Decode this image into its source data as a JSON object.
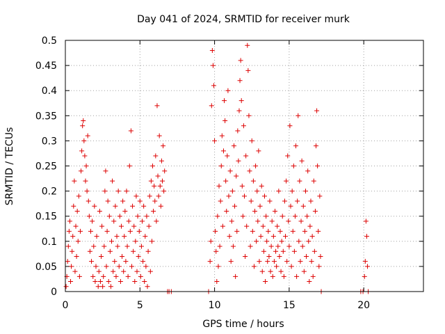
{
  "chart_data": {
    "type": "scatter",
    "title": "Day 041 of 2024, SRMTID for receiver murk",
    "xlabel": "GPS time / hours",
    "ylabel": "SRMTID / TECUs",
    "xlim": [
      0,
      24
    ],
    "ylim": [
      0,
      0.5
    ],
    "grid": true,
    "x_ticks": [
      0,
      5,
      10,
      15,
      20
    ],
    "y_ticks": [
      0,
      0.05,
      0.1,
      0.15,
      0.2,
      0.25,
      0.3,
      0.35,
      0.4,
      0.45,
      0.5
    ],
    "x_tick_labels": [
      "0",
      "5",
      "10",
      "15",
      "20"
    ],
    "y_tick_labels": [
      "0",
      "0.05",
      "0.1",
      "0.15",
      "0.2",
      "0.25",
      "0.3",
      "0.35",
      "0.4",
      "0.45",
      "0.5"
    ],
    "series": [
      {
        "name": "SRMTID",
        "marker": "+",
        "color": "#dd0000",
        "points": [
          [
            0.05,
            0.01
          ],
          [
            0.1,
            0.03
          ],
          [
            0.15,
            0.06
          ],
          [
            0.2,
            0.09
          ],
          [
            0.25,
            0.12
          ],
          [
            0.3,
            0.14
          ],
          [
            0.35,
            0.02
          ],
          [
            0.4,
            0.05
          ],
          [
            0.45,
            0.08
          ],
          [
            0.5,
            0.11
          ],
          [
            0.55,
            0.17
          ],
          [
            0.6,
            0.22
          ],
          [
            0.65,
            0.04
          ],
          [
            0.7,
            0.13
          ],
          [
            0.75,
            0.07
          ],
          [
            0.8,
            0.16
          ],
          [
            0.85,
            0.1
          ],
          [
            0.9,
            0.19
          ],
          [
            0.95,
            0.03
          ],
          [
            1.0,
            0.12
          ],
          [
            1.05,
            0.24
          ],
          [
            1.1,
            0.28
          ],
          [
            1.15,
            0.33
          ],
          [
            1.2,
            0.34
          ],
          [
            1.25,
            0.3
          ],
          [
            1.3,
            0.27
          ],
          [
            1.35,
            0.22
          ],
          [
            1.4,
            0.25
          ],
          [
            1.45,
            0.2
          ],
          [
            1.5,
            0.31
          ],
          [
            1.55,
            0.18
          ],
          [
            1.6,
            0.15
          ],
          [
            1.65,
            0.08
          ],
          [
            1.7,
            0.12
          ],
          [
            1.75,
            0.06
          ],
          [
            1.8,
            0.14
          ],
          [
            1.85,
            0.03
          ],
          [
            1.9,
            0.09
          ],
          [
            1.95,
            0.17
          ],
          [
            2.0,
            0.02
          ],
          [
            2.05,
            0.05
          ],
          [
            2.1,
            0.11
          ],
          [
            2.2,
            0.01
          ],
          [
            2.25,
            0.04
          ],
          [
            2.3,
            0.16
          ],
          [
            2.35,
            0.02
          ],
          [
            2.4,
            0.07
          ],
          [
            2.45,
            0.13
          ],
          [
            2.5,
            0.01
          ],
          [
            2.55,
            0.03
          ],
          [
            2.6,
            0.09
          ],
          [
            2.65,
            0.2
          ],
          [
            2.7,
            0.24
          ],
          [
            2.75,
            0.05
          ],
          [
            2.8,
            0.12
          ],
          [
            2.85,
            0.18
          ],
          [
            2.9,
            0.02
          ],
          [
            2.95,
            0.15
          ],
          [
            3.0,
            0.08
          ],
          [
            3.05,
            0.01
          ],
          [
            3.1,
            0.1
          ],
          [
            3.15,
            0.22
          ],
          [
            3.2,
            0.04
          ],
          [
            3.25,
            0.14
          ],
          [
            3.3,
            0.06
          ],
          [
            3.35,
            0.17
          ],
          [
            3.4,
            0.03
          ],
          [
            3.45,
            0.11
          ],
          [
            3.5,
            0.09
          ],
          [
            3.55,
            0.2
          ],
          [
            3.6,
            0.05
          ],
          [
            3.65,
            0.15
          ],
          [
            3.7,
            0.02
          ],
          [
            3.75,
            0.13
          ],
          [
            3.8,
            0.07
          ],
          [
            3.85,
            0.18
          ],
          [
            3.9,
            0.04
          ],
          [
            3.95,
            0.11
          ],
          [
            4.0,
            0.16
          ],
          [
            4.05,
            0.06
          ],
          [
            4.1,
            0.2
          ],
          [
            4.15,
            0.09
          ],
          [
            4.2,
            0.03
          ],
          [
            4.25,
            0.14
          ],
          [
            4.3,
            0.25
          ],
          [
            4.35,
            0.12
          ],
          [
            4.4,
            0.32
          ],
          [
            4.45,
            0.05
          ],
          [
            4.5,
            0.17
          ],
          [
            4.55,
            0.08
          ],
          [
            4.6,
            0.13
          ],
          [
            4.65,
            0.02
          ],
          [
            4.7,
            0.1
          ],
          [
            4.75,
            0.19
          ],
          [
            4.8,
            0.04
          ],
          [
            4.85,
            0.15
          ],
          [
            4.9,
            0.07
          ],
          [
            4.95,
            0.12
          ],
          [
            5.0,
            0.18
          ],
          [
            5.05,
            0.03
          ],
          [
            5.1,
            0.09
          ],
          [
            5.15,
            0.14
          ],
          [
            5.2,
            0.06
          ],
          [
            5.25,
            0.17
          ],
          [
            5.3,
            0.02
          ],
          [
            5.35,
            0.11
          ],
          [
            5.4,
            0.05
          ],
          [
            5.45,
            0.15
          ],
          [
            5.5,
            0.01
          ],
          [
            5.55,
            0.08
          ],
          [
            5.6,
            0.13
          ],
          [
            5.65,
            0.19
          ],
          [
            5.7,
            0.04
          ],
          [
            5.75,
            0.22
          ],
          [
            5.8,
            0.1
          ],
          [
            5.85,
            0.25
          ],
          [
            5.9,
            0.16
          ],
          [
            5.95,
            0.21
          ],
          [
            6.0,
            0.18
          ],
          [
            6.05,
            0.27
          ],
          [
            6.1,
            0.14
          ],
          [
            6.15,
            0.37
          ],
          [
            6.2,
            0.23
          ],
          [
            6.25,
            0.19
          ],
          [
            6.3,
            0.31
          ],
          [
            6.35,
            0.21
          ],
          [
            6.4,
            0.17
          ],
          [
            6.45,
            0.26
          ],
          [
            6.5,
            0.22
          ],
          [
            6.55,
            0.29
          ],
          [
            6.6,
            0.2
          ],
          [
            6.65,
            0.24
          ],
          [
            6.85,
            0.0
          ],
          [
            6.95,
            0.0
          ],
          [
            7.1,
            0.0
          ],
          [
            9.6,
            0.0
          ],
          [
            9.7,
            0.06
          ],
          [
            9.75,
            0.1
          ],
          [
            9.8,
            0.37
          ],
          [
            9.85,
            0.48
          ],
          [
            9.9,
            0.45
          ],
          [
            9.95,
            0.41
          ],
          [
            10.0,
            0.3
          ],
          [
            10.05,
            0.12
          ],
          [
            10.1,
            0.08
          ],
          [
            10.15,
            0.02
          ],
          [
            10.2,
            0.15
          ],
          [
            10.25,
            0.05
          ],
          [
            10.3,
            0.21
          ],
          [
            10.35,
            0.09
          ],
          [
            10.4,
            0.18
          ],
          [
            10.45,
            0.25
          ],
          [
            10.5,
            0.31
          ],
          [
            10.55,
            0.13
          ],
          [
            10.6,
            0.28
          ],
          [
            10.65,
            0.38
          ],
          [
            10.7,
            0.34
          ],
          [
            10.75,
            0.22
          ],
          [
            10.8,
            0.16
          ],
          [
            10.85,
            0.27
          ],
          [
            10.9,
            0.4
          ],
          [
            10.95,
            0.19
          ],
          [
            11.0,
            0.11
          ],
          [
            11.05,
            0.24
          ],
          [
            11.1,
            0.06
          ],
          [
            11.15,
            0.14
          ],
          [
            11.2,
            0.2
          ],
          [
            11.25,
            0.09
          ],
          [
            11.3,
            0.29
          ],
          [
            11.35,
            0.17
          ],
          [
            11.4,
            0.03
          ],
          [
            11.45,
            0.23
          ],
          [
            11.5,
            0.12
          ],
          [
            11.55,
            0.32
          ],
          [
            11.6,
            0.26
          ],
          [
            11.65,
            0.36
          ],
          [
            11.7,
            0.42
          ],
          [
            11.75,
            0.46
          ],
          [
            11.8,
            0.38
          ],
          [
            11.85,
            0.21
          ],
          [
            11.9,
            0.15
          ],
          [
            11.95,
            0.33
          ],
          [
            12.0,
            0.19
          ],
          [
            12.05,
            0.07
          ],
          [
            12.1,
            0.27
          ],
          [
            12.15,
            0.13
          ],
          [
            12.2,
            0.49
          ],
          [
            12.25,
            0.44
          ],
          [
            12.3,
            0.35
          ],
          [
            12.35,
            0.24
          ],
          [
            12.4,
            0.09
          ],
          [
            12.45,
            0.18
          ],
          [
            12.5,
            0.3
          ],
          [
            12.55,
            0.12
          ],
          [
            12.6,
            0.22
          ],
          [
            12.65,
            0.05
          ],
          [
            12.7,
            0.16
          ],
          [
            12.75,
            0.25
          ],
          [
            12.8,
            0.1
          ],
          [
            12.85,
            0.2
          ],
          [
            12.9,
            0.14
          ],
          [
            12.95,
            0.28
          ],
          [
            13.0,
            0.06
          ],
          [
            13.05,
            0.17
          ],
          [
            13.1,
            0.11
          ],
          [
            13.15,
            0.21
          ],
          [
            13.2,
            0.04
          ],
          [
            13.25,
            0.13
          ],
          [
            13.3,
            0.08
          ],
          [
            13.35,
            0.19
          ],
          [
            13.4,
            0.02
          ],
          [
            13.45,
            0.15
          ],
          [
            13.5,
            0.1
          ],
          [
            13.55,
            0.06
          ],
          [
            13.6,
            0.12
          ],
          [
            13.65,
            0.07
          ],
          [
            13.7,
            0.18
          ],
          [
            13.75,
            0.04
          ],
          [
            13.8,
            0.09
          ],
          [
            13.85,
            0.14
          ],
          [
            13.9,
            0.03
          ],
          [
            13.95,
            0.11
          ],
          [
            14.0,
            0.06
          ],
          [
            14.05,
            0.16
          ],
          [
            14.1,
            0.08
          ],
          [
            14.15,
            0.05
          ],
          [
            14.2,
            0.13
          ],
          [
            14.25,
            0.09
          ],
          [
            14.3,
            0.2
          ],
          [
            14.35,
            0.07
          ],
          [
            14.4,
            0.12
          ],
          [
            14.45,
            0.04
          ],
          [
            14.5,
            0.1
          ],
          [
            14.55,
            0.15
          ],
          [
            14.6,
            0.08
          ],
          [
            14.65,
            0.03
          ],
          [
            14.7,
            0.18
          ],
          [
            14.75,
            0.11
          ],
          [
            14.8,
            0.22
          ],
          [
            14.85,
            0.06
          ],
          [
            14.9,
            0.27
          ],
          [
            14.95,
            0.14
          ],
          [
            15.0,
            0.09
          ],
          [
            15.05,
            0.33
          ],
          [
            15.1,
            0.17
          ],
          [
            15.15,
            0.05
          ],
          [
            15.2,
            0.2
          ],
          [
            15.25,
            0.12
          ],
          [
            15.3,
            0.25
          ],
          [
            15.35,
            0.08
          ],
          [
            15.4,
            0.15
          ],
          [
            15.45,
            0.29
          ],
          [
            15.5,
            0.03
          ],
          [
            15.55,
            0.18
          ],
          [
            15.6,
            0.35
          ],
          [
            15.65,
            0.1
          ],
          [
            15.7,
            0.22
          ],
          [
            15.75,
            0.06
          ],
          [
            15.8,
            0.14
          ],
          [
            15.85,
            0.26
          ],
          [
            15.9,
            0.09
          ],
          [
            15.95,
            0.17
          ],
          [
            16.0,
            0.04
          ],
          [
            16.05,
            0.12
          ],
          [
            16.1,
            0.2
          ],
          [
            16.15,
            0.07
          ],
          [
            16.2,
            0.15
          ],
          [
            16.25,
            0.24
          ],
          [
            16.3,
            0.1
          ],
          [
            16.35,
            0.02
          ],
          [
            16.4,
            0.13
          ],
          [
            16.45,
            0.18
          ],
          [
            16.5,
            0.06
          ],
          [
            16.55,
            0.11
          ],
          [
            16.6,
            0.03
          ],
          [
            16.65,
            0.22
          ],
          [
            16.7,
            0.08
          ],
          [
            16.75,
            0.16
          ],
          [
            16.8,
            0.29
          ],
          [
            16.85,
            0.36
          ],
          [
            16.9,
            0.25
          ],
          [
            16.95,
            0.12
          ],
          [
            17.0,
            0.05
          ],
          [
            17.05,
            0.19
          ],
          [
            17.1,
            0.07
          ],
          [
            17.15,
            0.0
          ],
          [
            19.8,
            0.0
          ],
          [
            19.95,
            0.0
          ],
          [
            20.05,
            0.03
          ],
          [
            20.1,
            0.06
          ],
          [
            20.15,
            0.14
          ],
          [
            20.2,
            0.11
          ],
          [
            20.25,
            0.05
          ],
          [
            20.3,
            0.0
          ]
        ]
      }
    ]
  }
}
